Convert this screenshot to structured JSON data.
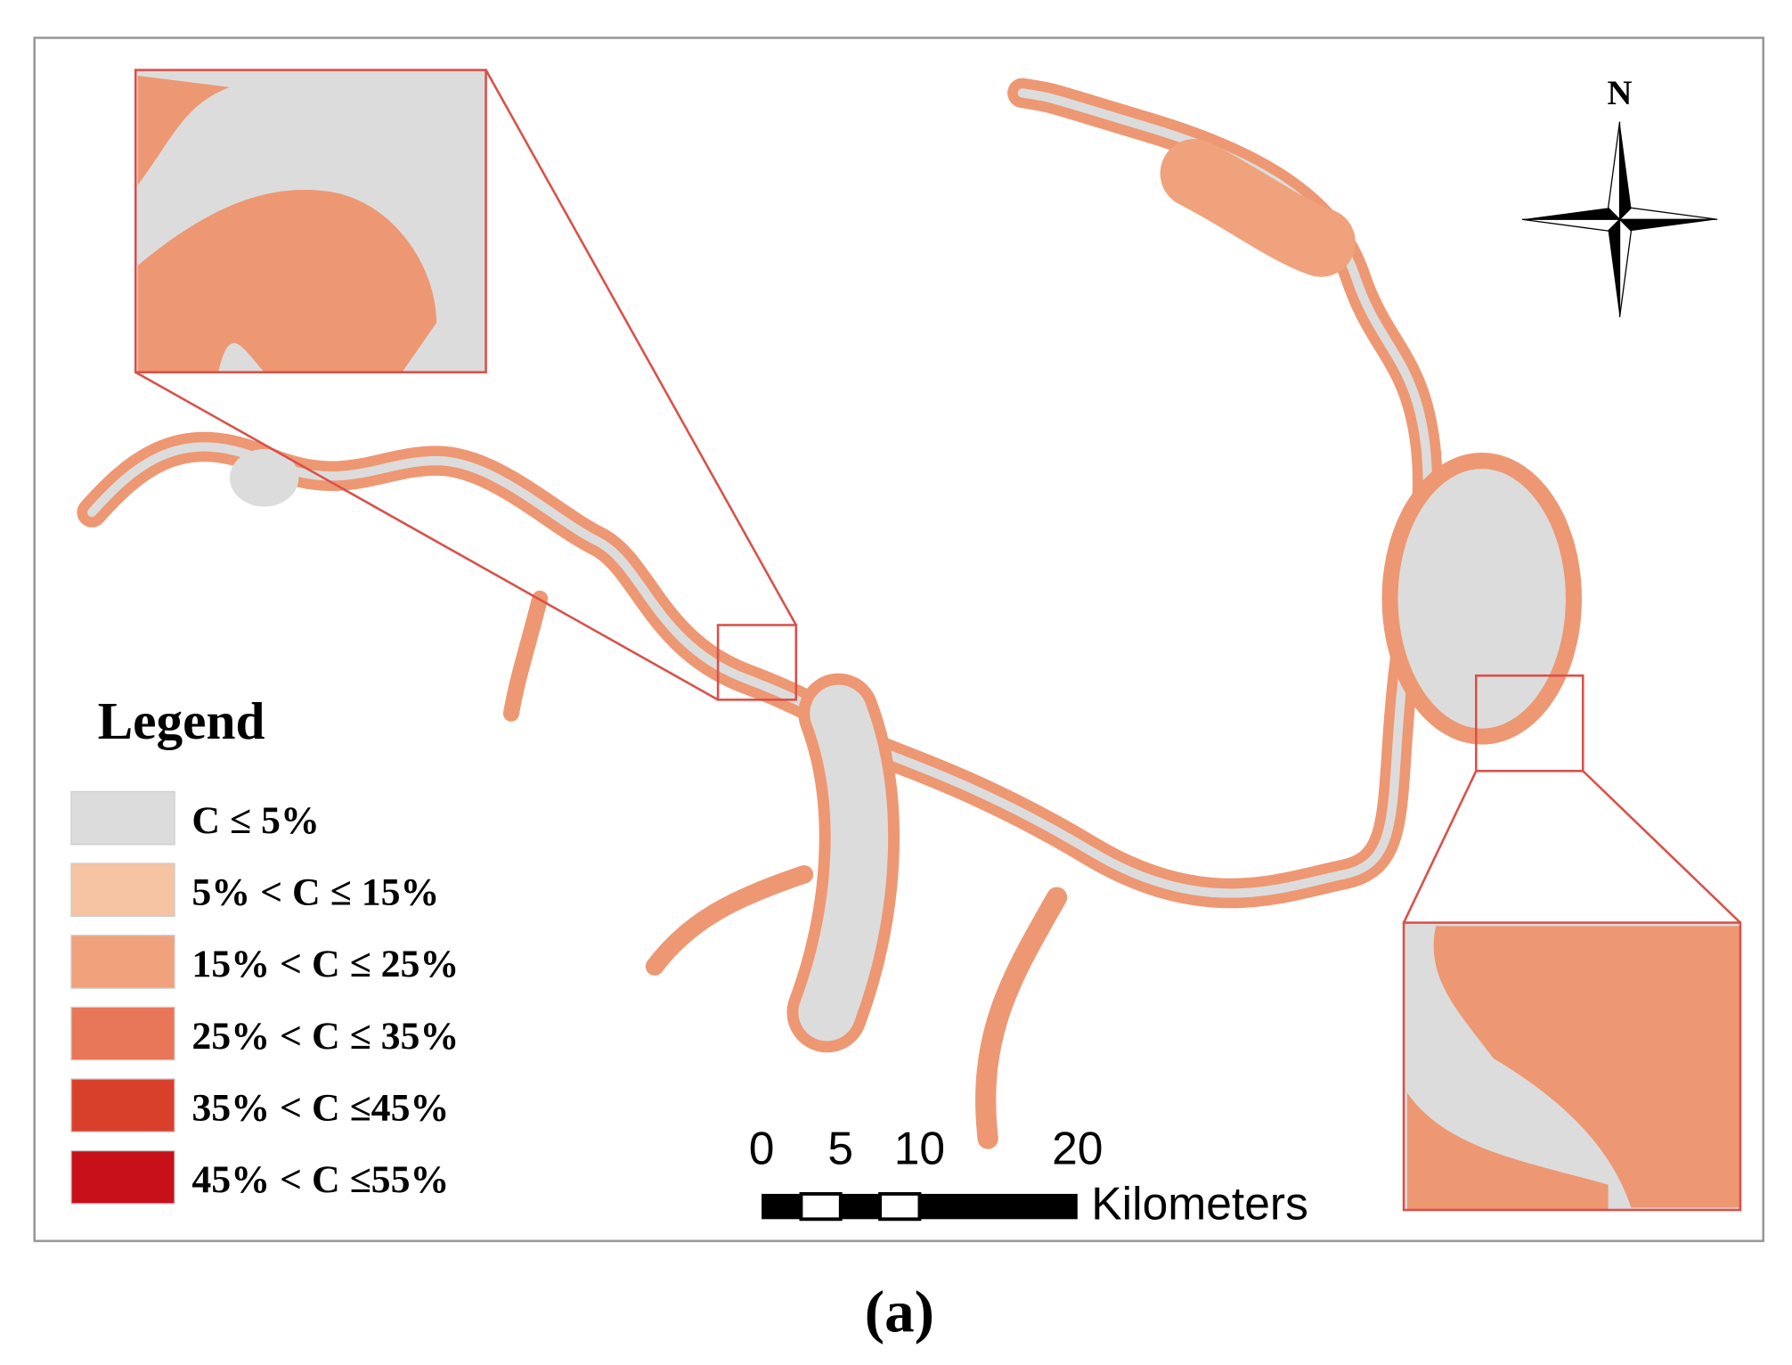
{
  "north_label": "N",
  "legend": {
    "title": "Legend",
    "items": [
      {
        "label": "C ≤ 5%",
        "color": "#dcdcdc"
      },
      {
        "label": "5% < C ≤ 15%",
        "color": "#f6c4a2"
      },
      {
        "label": "15% < C ≤ 25%",
        "color": "#f0a27c"
      },
      {
        "label": "25% < C ≤ 35%",
        "color": "#e8775a"
      },
      {
        "label": "35% < C ≤45%",
        "color": "#d9402c"
      },
      {
        "label": "45% < C ≤55%",
        "color": "#c8101a"
      }
    ]
  },
  "scale_bar": {
    "ticks": [
      0,
      5,
      10,
      20
    ],
    "unit": "Kilometers"
  },
  "caption": "(a)"
}
